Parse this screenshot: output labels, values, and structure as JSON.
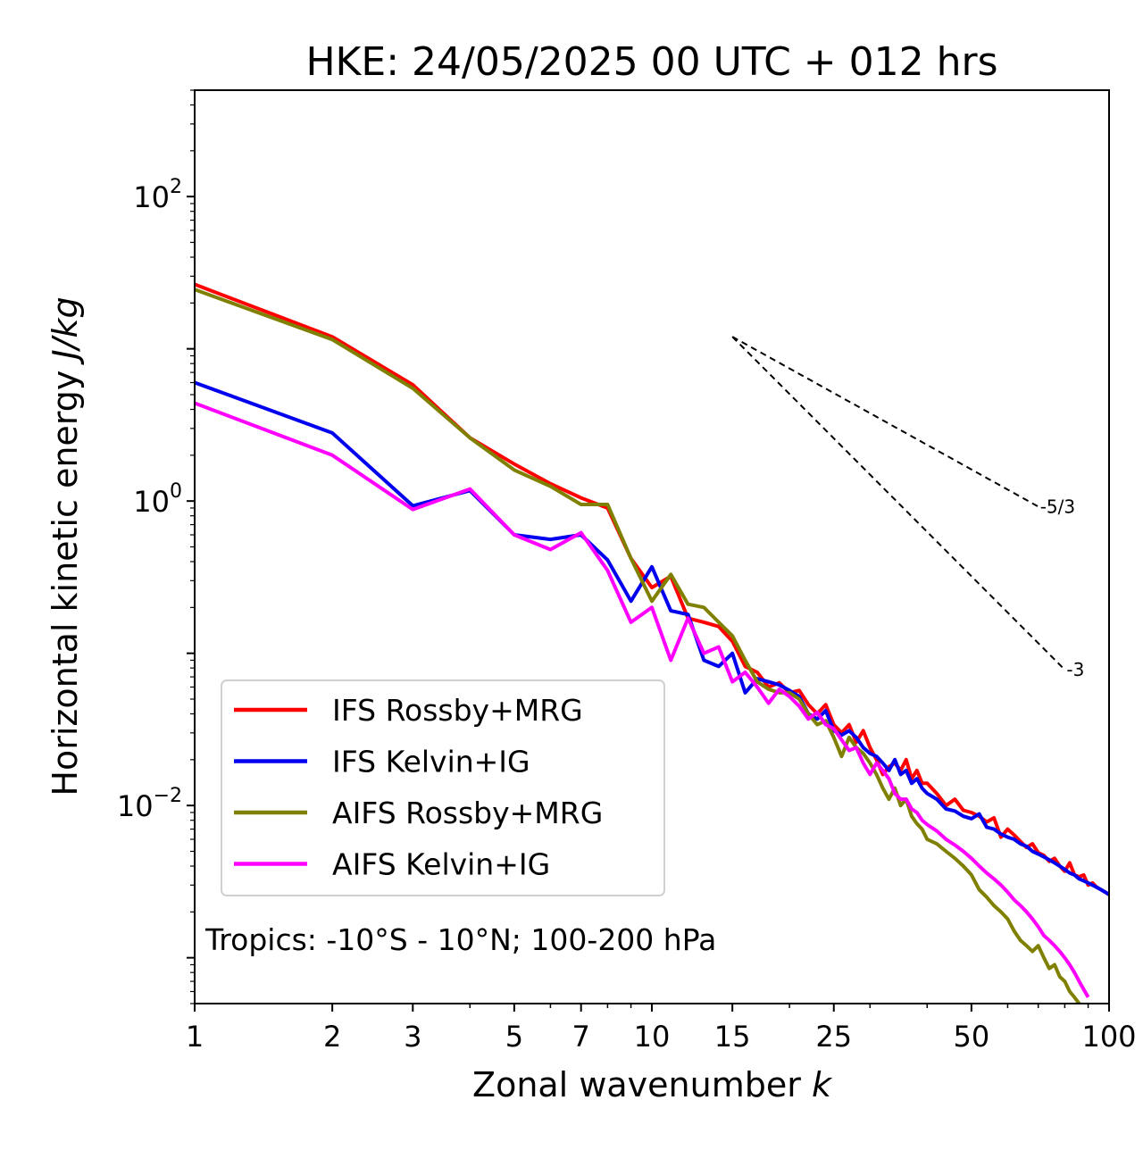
{
  "chart_data": {
    "type": "line",
    "title": "HKE: 24/05/2025 00 UTC + 012 hrs",
    "xlabel": "Zonal wavenumber",
    "xlabel_italic": "k",
    "ylabel": "Horizontal kinetic energy",
    "ylabel_italic": "J/kg",
    "xscale": "log",
    "yscale": "log",
    "xlim": [
      1,
      100
    ],
    "ylim": [
      0.0005,
      500
    ],
    "x_ticks": [
      1,
      2,
      3,
      5,
      7,
      10,
      15,
      25,
      50,
      100
    ],
    "x_tick_labels": [
      "1",
      "2",
      "3",
      "5",
      "7",
      "10",
      "15",
      "25",
      "50",
      "100"
    ],
    "y_ticks": [
      100,
      1,
      0.01
    ],
    "y_tick_labels": [
      {
        "base": "10",
        "exp": "2"
      },
      {
        "base": "10",
        "exp": "0"
      },
      {
        "base": "10",
        "exp": "−2"
      }
    ],
    "grid": false,
    "legend_placement": "lower-left",
    "annotation": "Tropics: -10°S - 10°N; 100-200 hPa",
    "reference_slopes": [
      {
        "label": "-5/3",
        "x": [
          15,
          70
        ],
        "y": [
          12.0,
          0.92
        ]
      },
      {
        "label": "-3",
        "x": [
          15,
          80
        ],
        "y": [
          12.0,
          0.078
        ]
      }
    ],
    "series": [
      {
        "name": "IFS Rossby+MRG",
        "color": "#ff0000",
        "x": [
          1,
          2,
          3,
          4,
          5,
          6,
          7,
          8,
          9,
          10,
          11,
          12,
          13,
          14,
          15,
          16,
          17,
          18,
          19,
          20,
          21,
          22,
          23,
          24,
          25,
          26,
          27,
          28,
          29,
          30,
          31,
          32,
          33,
          34,
          35,
          36,
          37,
          38,
          39,
          40,
          42,
          44,
          46,
          48,
          50,
          52,
          54,
          56,
          58,
          60,
          62,
          64,
          66,
          68,
          70,
          72,
          74,
          76,
          78,
          80,
          82,
          84,
          86,
          88,
          90,
          92,
          94,
          96,
          98,
          100
        ],
        "y": [
          26.5,
          12.0,
          5.8,
          2.6,
          1.75,
          1.3,
          1.05,
          0.9,
          0.42,
          0.27,
          0.32,
          0.17,
          0.16,
          0.15,
          0.12,
          0.082,
          0.075,
          0.06,
          0.064,
          0.055,
          0.057,
          0.046,
          0.04,
          0.046,
          0.034,
          0.03,
          0.034,
          0.026,
          0.031,
          0.024,
          0.02,
          0.016,
          0.018,
          0.019,
          0.017,
          0.02,
          0.015,
          0.017,
          0.014,
          0.014,
          0.012,
          0.01,
          0.011,
          0.0093,
          0.009,
          0.0085,
          0.0078,
          0.0083,
          0.0062,
          0.007,
          0.0064,
          0.0058,
          0.0053,
          0.0056,
          0.0049,
          0.0047,
          0.0043,
          0.0045,
          0.004,
          0.0037,
          0.0042,
          0.0035,
          0.0034,
          0.0035,
          0.003,
          0.0031,
          0.0029,
          0.0028,
          0.0027,
          0.0026
        ]
      },
      {
        "name": "IFS Kelvin+IG",
        "color": "#0000ee",
        "x": [
          1,
          2,
          3,
          4,
          5,
          6,
          7,
          8,
          9,
          10,
          11,
          12,
          13,
          14,
          15,
          16,
          17,
          18,
          19,
          20,
          21,
          22,
          23,
          24,
          25,
          26,
          27,
          28,
          29,
          30,
          31,
          32,
          33,
          34,
          35,
          36,
          37,
          38,
          39,
          40,
          42,
          44,
          46,
          48,
          50,
          52,
          54,
          56,
          58,
          60,
          62,
          64,
          66,
          68,
          70,
          72,
          74,
          76,
          78,
          80,
          82,
          84,
          86,
          88,
          90,
          92,
          94,
          96,
          98,
          100
        ],
        "y": [
          6.0,
          2.8,
          0.93,
          1.17,
          0.6,
          0.56,
          0.6,
          0.41,
          0.22,
          0.37,
          0.19,
          0.18,
          0.09,
          0.082,
          0.1,
          0.055,
          0.068,
          0.065,
          0.062,
          0.057,
          0.052,
          0.04,
          0.037,
          0.042,
          0.031,
          0.029,
          0.031,
          0.028,
          0.024,
          0.022,
          0.021,
          0.019,
          0.017,
          0.02,
          0.016,
          0.017,
          0.014,
          0.015,
          0.013,
          0.012,
          0.011,
          0.0095,
          0.0092,
          0.0085,
          0.0082,
          0.0088,
          0.0072,
          0.007,
          0.0065,
          0.0062,
          0.006,
          0.0056,
          0.0054,
          0.005,
          0.0048,
          0.0046,
          0.0044,
          0.0042,
          0.004,
          0.0038,
          0.0036,
          0.0035,
          0.0033,
          0.0032,
          0.0031,
          0.003,
          0.0029,
          0.0028,
          0.0027,
          0.0026
        ]
      },
      {
        "name": "AIFS Rossby+MRG",
        "color": "#808000",
        "x": [
          1,
          2,
          3,
          4,
          5,
          6,
          7,
          8,
          9,
          10,
          11,
          12,
          13,
          14,
          15,
          16,
          17,
          18,
          19,
          20,
          21,
          22,
          23,
          24,
          25,
          26,
          27,
          28,
          29,
          30,
          31,
          32,
          33,
          34,
          35,
          36,
          37,
          38,
          39,
          40,
          42,
          44,
          46,
          48,
          50,
          52,
          54,
          56,
          58,
          60,
          62,
          64,
          66,
          68,
          70,
          72,
          74,
          76,
          78,
          80,
          82,
          84,
          86,
          88,
          90,
          92,
          94,
          96,
          98,
          100
        ],
        "y": [
          24.5,
          11.5,
          5.5,
          2.6,
          1.6,
          1.25,
          0.95,
          0.95,
          0.42,
          0.22,
          0.33,
          0.21,
          0.2,
          0.16,
          0.13,
          0.09,
          0.065,
          0.058,
          0.055,
          0.055,
          0.05,
          0.04,
          0.034,
          0.036,
          0.028,
          0.021,
          0.028,
          0.024,
          0.022,
          0.019,
          0.016,
          0.013,
          0.011,
          0.013,
          0.01,
          0.011,
          0.0085,
          0.0076,
          0.007,
          0.006,
          0.0056,
          0.005,
          0.0045,
          0.004,
          0.0035,
          0.0028,
          0.0025,
          0.0022,
          0.002,
          0.0018,
          0.0015,
          0.0013,
          0.0012,
          0.0011,
          0.0012,
          0.001,
          0.00085,
          0.0009,
          0.00075,
          0.0007,
          0.0006,
          0.00055,
          0.0005,
          0.00045,
          0.0004,
          0.00037,
          0.00034,
          0.00031,
          0.00029,
          0.00027
        ]
      },
      {
        "name": "AIFS Kelvin+IG",
        "color": "#ff00ff",
        "x": [
          1,
          2,
          3,
          4,
          5,
          6,
          7,
          8,
          9,
          10,
          11,
          12,
          13,
          14,
          15,
          16,
          17,
          18,
          19,
          20,
          21,
          22,
          23,
          24,
          25,
          26,
          27,
          28,
          29,
          30,
          31,
          32,
          33,
          34,
          35,
          36,
          37,
          38,
          39,
          40,
          42,
          44,
          46,
          48,
          50,
          52,
          54,
          56,
          58,
          60,
          62,
          64,
          66,
          68,
          70,
          72,
          74,
          76,
          78,
          80,
          82,
          84,
          86,
          88,
          90
        ],
        "y": [
          4.4,
          2.0,
          0.88,
          1.2,
          0.6,
          0.48,
          0.62,
          0.35,
          0.16,
          0.2,
          0.09,
          0.17,
          0.1,
          0.11,
          0.065,
          0.075,
          0.06,
          0.047,
          0.058,
          0.052,
          0.045,
          0.037,
          0.041,
          0.034,
          0.032,
          0.027,
          0.023,
          0.024,
          0.019,
          0.016,
          0.019,
          0.017,
          0.015,
          0.012,
          0.011,
          0.011,
          0.0095,
          0.009,
          0.008,
          0.0075,
          0.0068,
          0.006,
          0.0055,
          0.005,
          0.0045,
          0.004,
          0.0036,
          0.0033,
          0.003,
          0.0027,
          0.0024,
          0.0022,
          0.002,
          0.0018,
          0.0016,
          0.0014,
          0.0013,
          0.0012,
          0.0011,
          0.001,
          0.0009,
          0.0008,
          0.0007,
          0.00062,
          0.00055
        ]
      }
    ]
  }
}
